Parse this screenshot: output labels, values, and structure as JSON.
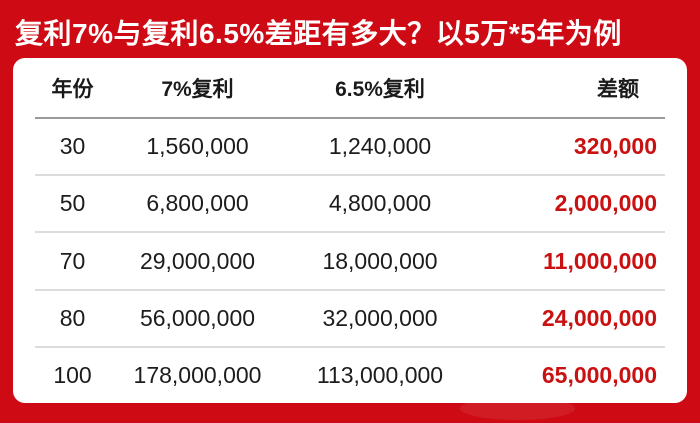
{
  "title": "复利7%与复利6.5%差距有多大？以5万*5年为例",
  "table": {
    "headers": [
      "年份",
      "7%复利",
      "6.5%复利",
      "差额"
    ],
    "rows": [
      {
        "year": "30",
        "rate7": "1,560,000",
        "rate65": "1,240,000",
        "diff": "320,000"
      },
      {
        "year": "50",
        "rate7": "6,800,000",
        "rate65": "4,800,000",
        "diff": "2,000,000"
      },
      {
        "year": "70",
        "rate7": "29,000,000",
        "rate65": "18,000,000",
        "diff": "11,000,000"
      },
      {
        "year": "80",
        "rate7": "56,000,000",
        "rate65": "32,000,000",
        "diff": "24,000,000"
      },
      {
        "year": "100",
        "rate7": "178,000,000",
        "rate65": "113,000,000",
        "diff": "65,000,000"
      }
    ]
  },
  "colors": {
    "brand_red_background": "#ce0b14",
    "difference_text_red": "#c91111",
    "title_text": "#ffffff",
    "body_text": "#1c1c1c",
    "header_divider": "#9b9b9b",
    "row_divider": "#dcdcdc",
    "card_background": "#ffffff"
  },
  "chart_data": {
    "type": "table",
    "title": "复利7%与复利6.5%差距有多大？以5万*5年为例",
    "columns": [
      "年份",
      "7%复利",
      "6.5%复利",
      "差额"
    ],
    "rows": [
      [
        30,
        1560000,
        1240000,
        320000
      ],
      [
        50,
        6800000,
        4800000,
        2000000
      ],
      [
        70,
        29000000,
        18000000,
        11000000
      ],
      [
        80,
        56000000,
        32000000,
        24000000
      ],
      [
        100,
        178000000,
        113000000,
        65000000
      ]
    ],
    "notes": "差额 column values highlighted in red; comparison of compound interest at 7% vs 6.5%, base 5万*5年"
  }
}
